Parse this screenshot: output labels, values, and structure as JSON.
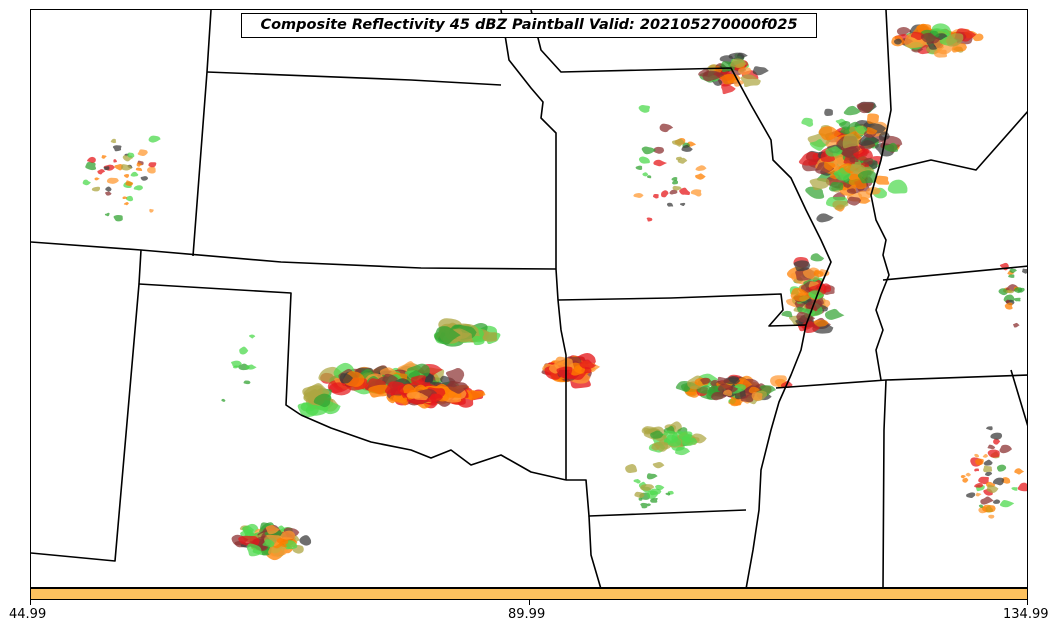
{
  "title": "Composite Reflectivity 45 dBZ Paintball Valid: 202105270000f025",
  "colorbar": {
    "color": "#fdc15e",
    "ticks": [
      "44.99",
      "89.99",
      "134.99"
    ]
  },
  "paintball_colors": [
    "#e5191c",
    "#ff7f00",
    "#ff9933",
    "#4dd94d",
    "#33a333",
    "#ada642",
    "#8c3333",
    "#3d3d3d",
    "#eeeeee"
  ],
  "map_features": [
    "state-borders",
    "radar-reflectivity-cells"
  ]
}
